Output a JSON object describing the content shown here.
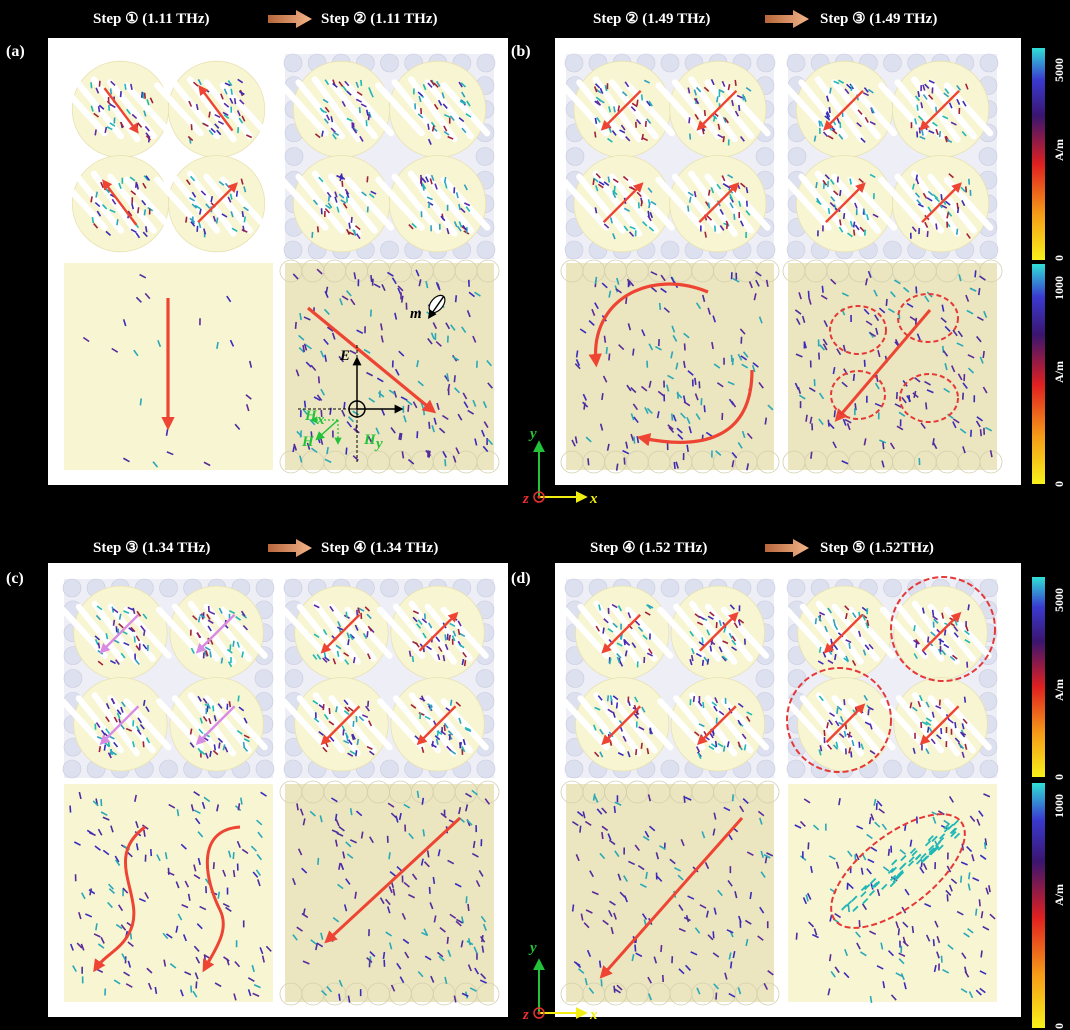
{
  "colors": {
    "background": "#000000",
    "frame": "#ffffff",
    "tile": "#f8f6d2",
    "tile_dark": "#ebe6bf",
    "arrow_red": "#ee4433",
    "arrow_magenta": "#d98be3",
    "cyan": "#1fb7b7",
    "purple": "#4a2ea0",
    "ellipse_red": "#e53939",
    "axis_green": "#22c33a",
    "axis_yellow": "#f2ee12",
    "axis_red": "#e83030"
  },
  "top_row": {
    "group_a": {
      "step_left": "Step ① (1.11 THz)",
      "step_right": "Step ② (1.11 THz)",
      "panel_label": "(a)"
    },
    "group_b": {
      "step_left": "Step ② (1.49 THz)",
      "step_right": "Step ③ (1.49 THz)",
      "panel_label": "(b)"
    }
  },
  "bottom_row": {
    "group_c": {
      "step_left": "Step ③ (1.34 THz)",
      "step_right": "Step ④ (1.34 THz)",
      "panel_label": "(c)"
    },
    "group_d": {
      "step_left": "Step ④ (1.52 THz)",
      "step_right": "Step ⑤ (1.52THz)",
      "panel_label": "(d)"
    }
  },
  "colorbars": {
    "top_surface_current": {
      "max": "5000",
      "unit": "A/m",
      "min": "0"
    },
    "top_magnetic": {
      "max": "1000",
      "unit": "A/m",
      "min": "0"
    },
    "bottom_surface_current": {
      "max": "5000",
      "unit": "A/m",
      "min": "0"
    },
    "bottom_magnetic": {
      "max": "1000",
      "unit": "A/m",
      "min": "0"
    }
  },
  "field_annotations": {
    "E": "E",
    "H": "H",
    "Hx": "H",
    "Hx_sub": "x",
    "Hy": "H",
    "Hy_sub": "y",
    "m": "m"
  },
  "axes": {
    "x": "x",
    "y": "y",
    "z": "z"
  }
}
